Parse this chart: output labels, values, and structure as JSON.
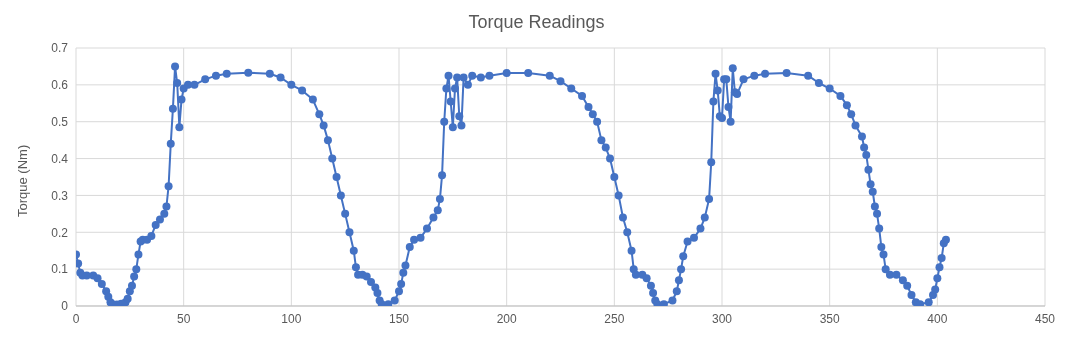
{
  "chart_data": {
    "type": "line",
    "title": "Torque Readings",
    "ylabel": "Torque (Nm)",
    "x": [
      0,
      1,
      2,
      3,
      5,
      8,
      10,
      12,
      14,
      15,
      16,
      17,
      19,
      21,
      23,
      24,
      25,
      26,
      27,
      28,
      29,
      30,
      31,
      33,
      35,
      37,
      39,
      41,
      42,
      43,
      44,
      45,
      46,
      47,
      48,
      49,
      50,
      52,
      55,
      60,
      65,
      70,
      80,
      90,
      95,
      100,
      105,
      110,
      113,
      115,
      117,
      119,
      121,
      123,
      125,
      127,
      129,
      130,
      131,
      133,
      135,
      137,
      139,
      140,
      141,
      142,
      145,
      148,
      150,
      151,
      152,
      153,
      155,
      157,
      160,
      163,
      166,
      168,
      169,
      170,
      171,
      172,
      173,
      174,
      175,
      176,
      177,
      178,
      179,
      180,
      182,
      184,
      188,
      192,
      200,
      210,
      220,
      225,
      230,
      235,
      238,
      240,
      242,
      244,
      246,
      248,
      250,
      252,
      254,
      256,
      258,
      259,
      260,
      263,
      265,
      267,
      268,
      269,
      270,
      273,
      277,
      279,
      280,
      281,
      282,
      284,
      287,
      290,
      292,
      294,
      295,
      296,
      297,
      298,
      299,
      300,
      301,
      302,
      303,
      304,
      305,
      306,
      307,
      310,
      315,
      320,
      330,
      340,
      345,
      350,
      355,
      358,
      360,
      362,
      365,
      366,
      367,
      368,
      369,
      370,
      371,
      372,
      373,
      374,
      375,
      376,
      378,
      381,
      384,
      386,
      388,
      390,
      392,
      396,
      398,
      399,
      400,
      401,
      402,
      403,
      404
    ],
    "series": [
      {
        "color": "#4472c4",
        "values": [
          0.14,
          0.115,
          0.09,
          0.083,
          0.083,
          0.083,
          0.075,
          0.06,
          0.04,
          0.025,
          0.01,
          0.005,
          0.004,
          0.006,
          0.01,
          0.02,
          0.04,
          0.055,
          0.08,
          0.1,
          0.14,
          0.175,
          0.18,
          0.18,
          0.19,
          0.22,
          0.235,
          0.25,
          0.27,
          0.325,
          0.44,
          0.535,
          0.65,
          0.605,
          0.485,
          0.56,
          0.59,
          0.6,
          0.6,
          0.615,
          0.625,
          0.63,
          0.633,
          0.63,
          0.62,
          0.6,
          0.585,
          0.56,
          0.52,
          0.49,
          0.45,
          0.4,
          0.35,
          0.3,
          0.25,
          0.2,
          0.15,
          0.105,
          0.085,
          0.085,
          0.08,
          0.065,
          0.05,
          0.035,
          0.015,
          0.005,
          0.005,
          0.015,
          0.04,
          0.06,
          0.09,
          0.11,
          0.16,
          0.18,
          0.185,
          0.21,
          0.24,
          0.26,
          0.29,
          0.355,
          0.5,
          0.59,
          0.625,
          0.555,
          0.485,
          0.59,
          0.62,
          0.515,
          0.49,
          0.62,
          0.6,
          0.625,
          0.62,
          0.625,
          0.632,
          0.632,
          0.625,
          0.61,
          0.59,
          0.57,
          0.54,
          0.52,
          0.5,
          0.45,
          0.43,
          0.4,
          0.35,
          0.3,
          0.24,
          0.2,
          0.15,
          0.1,
          0.085,
          0.085,
          0.075,
          0.055,
          0.035,
          0.015,
          0.005,
          0.005,
          0.015,
          0.04,
          0.07,
          0.1,
          0.135,
          0.175,
          0.185,
          0.21,
          0.24,
          0.29,
          0.39,
          0.555,
          0.63,
          0.585,
          0.515,
          0.51,
          0.615,
          0.615,
          0.54,
          0.5,
          0.645,
          0.58,
          0.575,
          0.615,
          0.625,
          0.63,
          0.632,
          0.625,
          0.605,
          0.59,
          0.57,
          0.545,
          0.52,
          0.49,
          0.46,
          0.43,
          0.41,
          0.37,
          0.33,
          0.31,
          0.27,
          0.25,
          0.21,
          0.16,
          0.14,
          0.1,
          0.085,
          0.085,
          0.07,
          0.055,
          0.03,
          0.01,
          0.005,
          0.01,
          0.03,
          0.045,
          0.075,
          0.105,
          0.13,
          0.17,
          0.18
        ]
      }
    ],
    "xlim": [
      0,
      450
    ],
    "xticks": [
      0,
      50,
      100,
      150,
      200,
      250,
      300,
      350,
      400,
      450
    ],
    "ylim": [
      0,
      0.7
    ],
    "yticks": [
      0,
      0.1,
      0.2,
      0.3,
      0.4,
      0.5,
      0.6,
      0.7
    ],
    "grid": true,
    "marker": "circle",
    "line_style": "solid"
  }
}
